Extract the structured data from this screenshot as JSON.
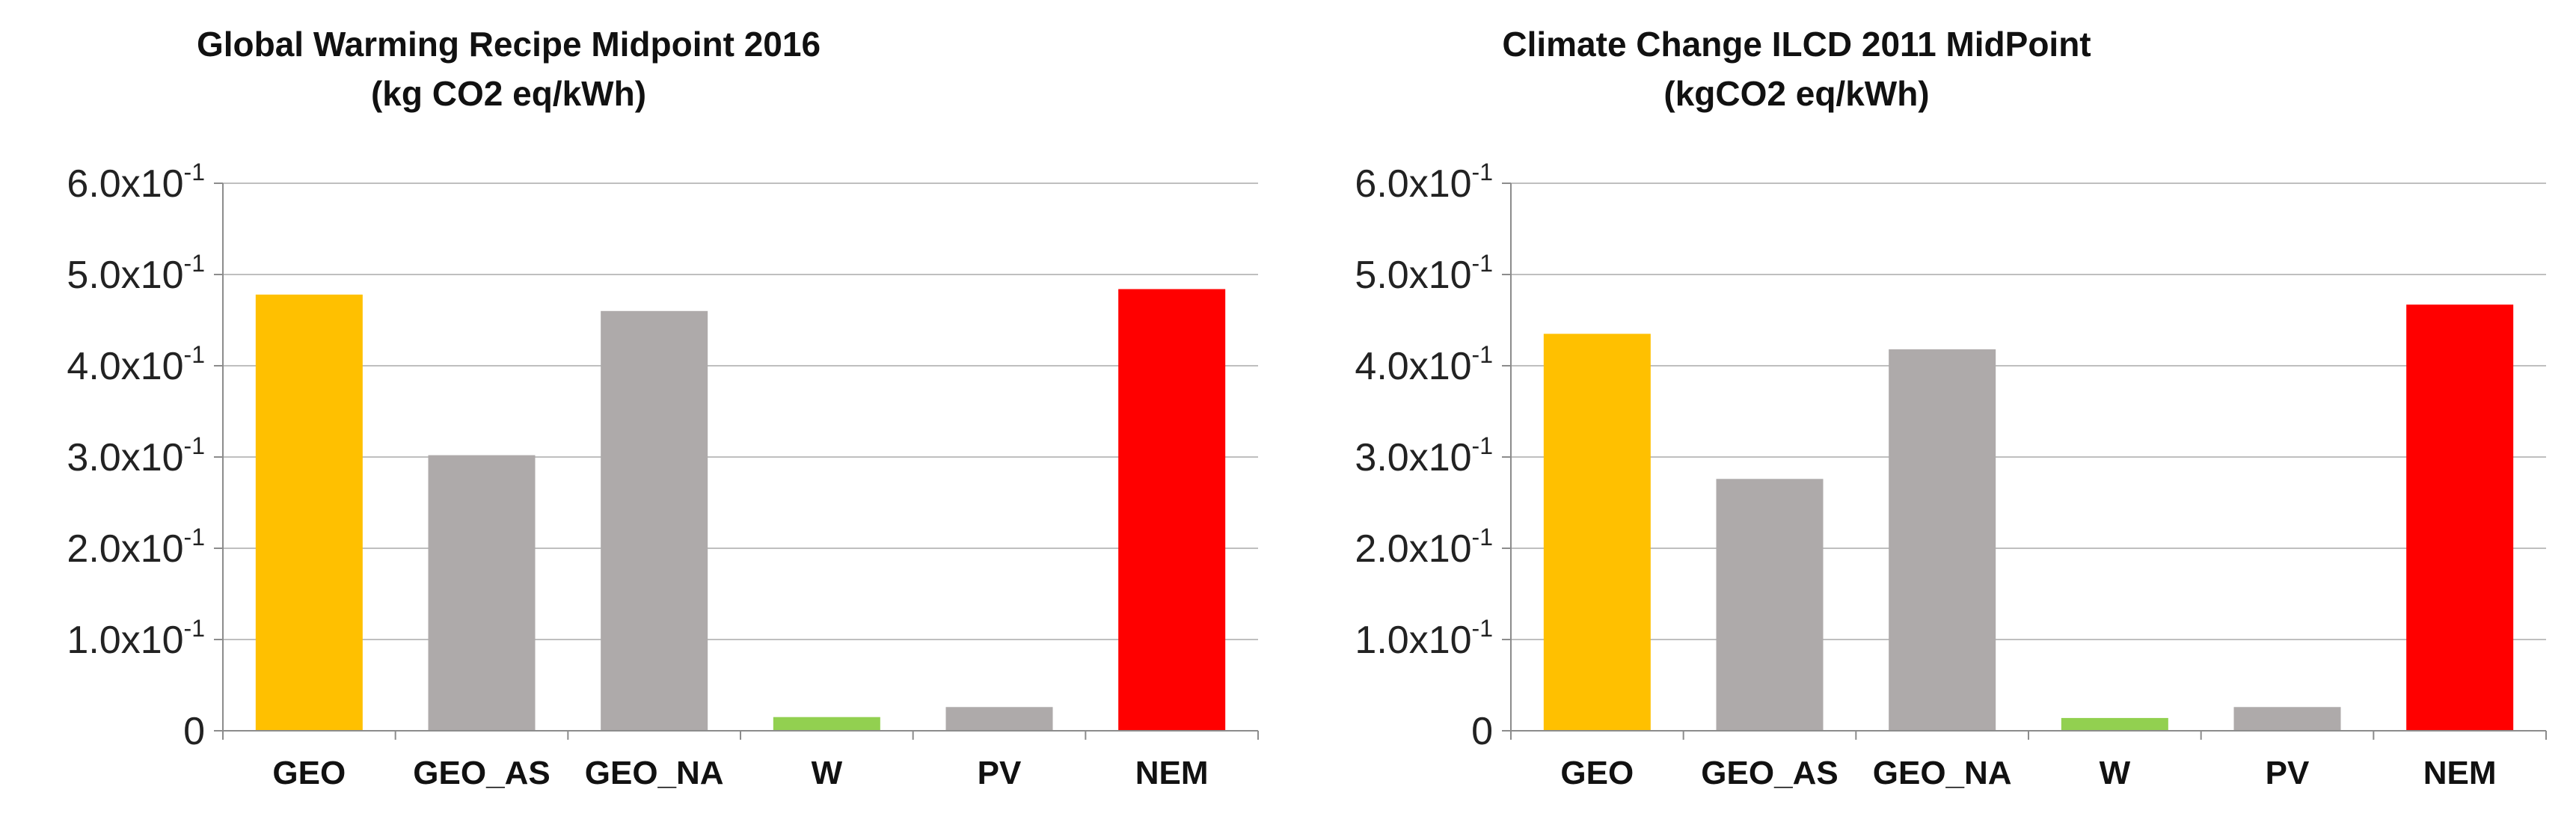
{
  "chart_data": [
    {
      "type": "bar",
      "title": "Global Warming Recipe Midpoint 2016",
      "subtitle": "(kg CO2 eq/kWh)",
      "categories": [
        "GEO",
        "GEO_AS",
        "GEO_NA",
        "W",
        "PV",
        "NEM"
      ],
      "values": [
        0.478,
        0.302,
        0.46,
        0.015,
        0.026,
        0.484
      ],
      "colors": [
        "#FFC000",
        "#AEAAAA",
        "#AEAAAA",
        "#92D050",
        "#AEAAAA",
        "#FF0000"
      ],
      "ylim": [
        0,
        0.6
      ],
      "yticks": [
        0,
        0.1,
        0.2,
        0.3,
        0.4,
        0.5,
        0.6
      ],
      "ytick_labels": [
        {
          "base": "0",
          "exp": ""
        },
        {
          "base": "1.0x10",
          "exp": "-1"
        },
        {
          "base": "2.0x10",
          "exp": "-1"
        },
        {
          "base": "3.0x10",
          "exp": "-1"
        },
        {
          "base": "4.0x10",
          "exp": "-1"
        },
        {
          "base": "5.0x10",
          "exp": "-1"
        },
        {
          "base": "6.0x10",
          "exp": "-1"
        }
      ],
      "xlabel": "",
      "ylabel": "",
      "grid": true,
      "legend": false
    },
    {
      "type": "bar",
      "title": "Climate Change ILCD 2011 MidPoint",
      "subtitle": "(kgCO2 eq/kWh)",
      "categories": [
        "GEO",
        "GEO_AS",
        "GEO_NA",
        "W",
        "PV",
        "NEM"
      ],
      "values": [
        0.435,
        0.276,
        0.418,
        0.014,
        0.026,
        0.467
      ],
      "colors": [
        "#FFC000",
        "#AEAAAA",
        "#AEAAAA",
        "#92D050",
        "#AEAAAA",
        "#FF0000"
      ],
      "ylim": [
        0,
        0.6
      ],
      "yticks": [
        0,
        0.1,
        0.2,
        0.3,
        0.4,
        0.5,
        0.6
      ],
      "ytick_labels": [
        {
          "base": "0",
          "exp": ""
        },
        {
          "base": "1.0x10",
          "exp": "-1"
        },
        {
          "base": "2.0x10",
          "exp": "-1"
        },
        {
          "base": "3.0x10",
          "exp": "-1"
        },
        {
          "base": "4.0x10",
          "exp": "-1"
        },
        {
          "base": "5.0x10",
          "exp": "-1"
        },
        {
          "base": "6.0x10",
          "exp": "-1"
        }
      ],
      "xlabel": "",
      "ylabel": "",
      "grid": true,
      "legend": false
    }
  ],
  "style": {
    "gridline_color": "#BFBFBF",
    "axis_color": "#8C8C8C",
    "text_color": "#111111"
  }
}
